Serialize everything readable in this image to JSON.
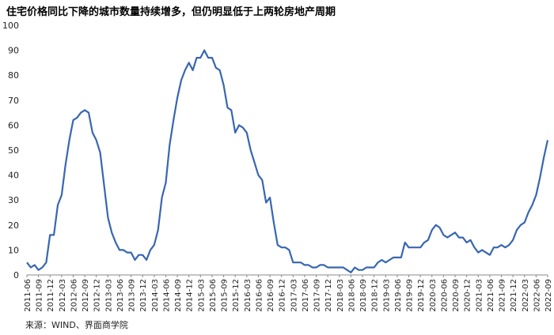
{
  "title": "住宅价格同比下降的城市数量持续增多，但仍明显低于上两轮房地产周期",
  "source": "来源：WIND、界面商学院",
  "colors": {
    "line": "#3866b0",
    "axis": "#888888"
  },
  "chart_data": {
    "type": "line",
    "title": "住宅价格同比下降的城市数量持续增多，但仍明显低于上两轮房地产周期",
    "ylim": [
      0,
      100
    ],
    "yticks": [
      0,
      10,
      20,
      30,
      40,
      50,
      60,
      70,
      80,
      90,
      100
    ],
    "grid": false,
    "x_tick_labels": [
      "2011-06",
      "2011-09",
      "2011-12",
      "2012-03",
      "2012-06",
      "2012-09",
      "2012-12",
      "2013-03",
      "2013-06",
      "2013-09",
      "2013-12",
      "2014-03",
      "2014-06",
      "2014-09",
      "2014-12",
      "2015-03",
      "2015-06",
      "2015-09",
      "2015-12",
      "2016-03",
      "2016-06",
      "2016-09",
      "2016-12",
      "2017-03",
      "2017-06",
      "2017-09",
      "2017-12",
      "2018-03",
      "2018-06",
      "2018-09",
      "2018-12",
      "2019-03",
      "2019-06",
      "2019-09",
      "2019-12",
      "2020-03",
      "2020-06",
      "2020-09",
      "2020-12",
      "2021-03",
      "2021-06",
      "2021-09",
      "2021-12",
      "2022-03",
      "2022-06",
      "2022-09"
    ],
    "x_start": "2011-06",
    "values": [
      5,
      3,
      4,
      2,
      3,
      5,
      16,
      16,
      28,
      32,
      44,
      54,
      62,
      63,
      65,
      66,
      65,
      57,
      54,
      49,
      36,
      23,
      17,
      13,
      10,
      10,
      9,
      9,
      6,
      8,
      8,
      6,
      10,
      12,
      18,
      31,
      37,
      52,
      62,
      71,
      78,
      82,
      85,
      82,
      87,
      87,
      90,
      87,
      87,
      83,
      82,
      76,
      67,
      66,
      57,
      60,
      59,
      57,
      50,
      45,
      40,
      38,
      29,
      31,
      21,
      12,
      11,
      11,
      10,
      5,
      5,
      5,
      4,
      4,
      3,
      3,
      4,
      4,
      3,
      3,
      3,
      3,
      3,
      2,
      1,
      3,
      2,
      2,
      3,
      3,
      3,
      5,
      6,
      5,
      6,
      7,
      7,
      7,
      13,
      11,
      11,
      11,
      11,
      13,
      14,
      18,
      20,
      19,
      16,
      15,
      16,
      17,
      15,
      15,
      13,
      14,
      11,
      9,
      10,
      9,
      8,
      11,
      11,
      12,
      11,
      12,
      14,
      18,
      20,
      21,
      25,
      28,
      32,
      39,
      47,
      54
    ]
  }
}
